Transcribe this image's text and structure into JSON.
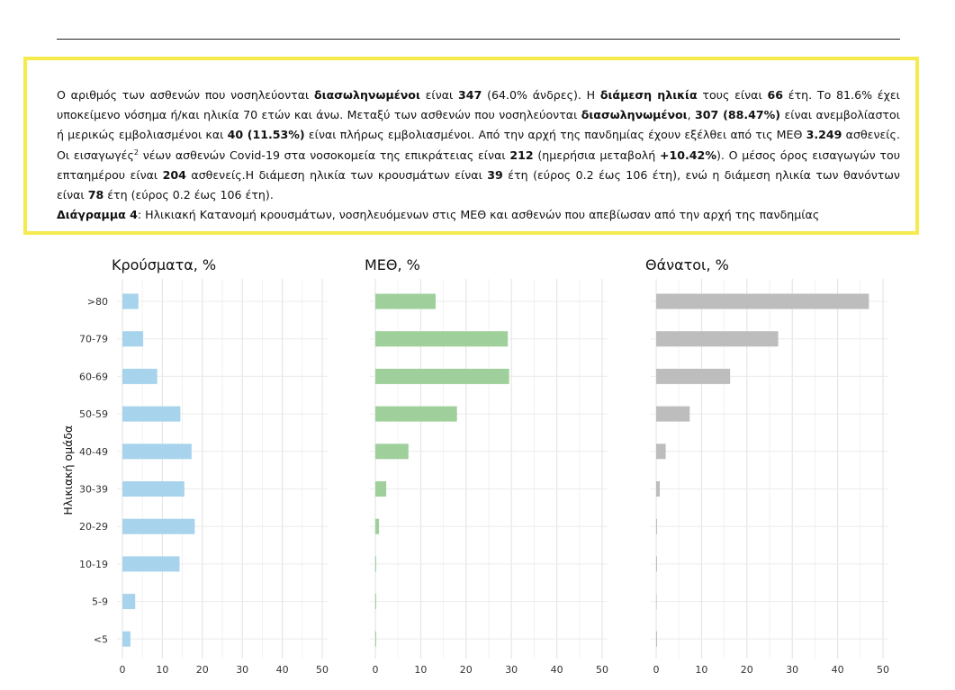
{
  "text": {
    "p1_a": "Ο αριθμός των ασθενών που νοσηλεύονται",
    "p1_b": "διασωληνωμένοι",
    "p1_c": "είναι",
    "p1_d": "347",
    "p1_e": "(64.0% άνδρες).  Η",
    "p1_f": "διάμεση ηλικία",
    "p1_g": "τους είναι",
    "p1_h": "66",
    "p1_i": "έτη.  Το 81.6% έχει υποκείμενο νόσημα ή/και ηλικία 70 ετών και άνω. Μεταξύ των ασθενών που νοσηλεύονται",
    "p1_j": "διασωληνωμένοι",
    "p1_k": ",",
    "p1_l": "307 (88.47%)",
    "p1_m": "είναι ανεμβολίαστοι ή μερικώς εμβολιασμένοι και",
    "p1_n": "40 (11.53%)",
    "p1_o": "είναι πλήρως εμβολιασμένοι. Από την αρχή της πανδημίας έχουν εξέλθει από τις ΜΕΘ",
    "p1_p": "3.249",
    "p1_q": "ασθενείς. Οι εισαγωγές",
    "p1_sup": "2",
    "p1_r": "νέων ασθενών Covid-19 στα νοσοκομεία της επικράτειας είναι",
    "p1_s": "212",
    "p1_t": "(ημερήσια μεταβολή",
    "p1_u": "+10.42%",
    "p1_v": "). Ο μέσος όρος εισαγωγών του επταημέρου είναι",
    "p1_w": "204",
    "p1_x": "ασθενείς.Η διάμεση ηλικία των κρουσμάτων είναι",
    "p1_y": "39",
    "p1_z": "έτη (εύρος 0.2 έως 106 έτη), ενώ η διάμεση ηλικία των θανόντων είναι",
    "p1_aa": "78",
    "p1_ab": "έτη (εύρος 0.2 έως 106 έτη).",
    "caption_label": "Διάγραμμα 4",
    "caption_text": ": Ηλικιακή Κατανομή κρουσμάτων, νοσηλευόμενων στις ΜΕΘ και ασθενών που απεβίωσαν από την αρχή της πανδημίας"
  },
  "chart_data": [
    {
      "type": "bar",
      "orientation": "horizontal",
      "title": "Κρούσματα, %",
      "ylabel": "Ηλικιακή ομάδα",
      "xlabel": "",
      "color": "#a7d3ec",
      "categories": [
        ">80",
        "70-79",
        "60-69",
        "50-59",
        "40-49",
        "30-39",
        "20-29",
        "10-19",
        "5-9",
        "<5"
      ],
      "values": [
        4.0,
        5.2,
        8.7,
        14.5,
        17.3,
        15.5,
        18.1,
        14.3,
        3.2,
        2.0
      ],
      "xlim": [
        0,
        50
      ],
      "xticks": [
        "0",
        "10",
        "20",
        "30",
        "40",
        "50"
      ],
      "grid": true
    },
    {
      "type": "bar",
      "orientation": "horizontal",
      "title": "ΜΕΘ, %",
      "ylabel": "",
      "xlabel": "",
      "color": "#9fd09b",
      "categories": [
        ">80",
        "70-79",
        "60-69",
        "50-59",
        "40-49",
        "30-39",
        "20-29",
        "10-19",
        "5-9",
        "<5"
      ],
      "values": [
        13.3,
        29.2,
        29.5,
        18.0,
        7.3,
        2.4,
        0.8,
        0.2,
        0.1,
        0.1
      ],
      "xlim": [
        0,
        50
      ],
      "xticks": [
        "0",
        "10",
        "20",
        "30",
        "40",
        "50"
      ],
      "grid": true
    },
    {
      "type": "bar",
      "orientation": "horizontal",
      "title": "Θάνατοι, %",
      "ylabel": "",
      "xlabel": "",
      "color": "#bdbdbd",
      "categories": [
        ">80",
        "70-79",
        "60-69",
        "50-59",
        "40-49",
        "30-39",
        "20-29",
        "10-19",
        "5-9",
        "<5"
      ],
      "values": [
        46.9,
        26.9,
        16.3,
        7.4,
        2.1,
        0.8,
        0.2,
        0.1,
        0.0,
        0.1
      ],
      "xlim": [
        0,
        50
      ],
      "xticks": [
        "0",
        "10",
        "20",
        "30",
        "40",
        "50"
      ],
      "grid": true
    }
  ]
}
